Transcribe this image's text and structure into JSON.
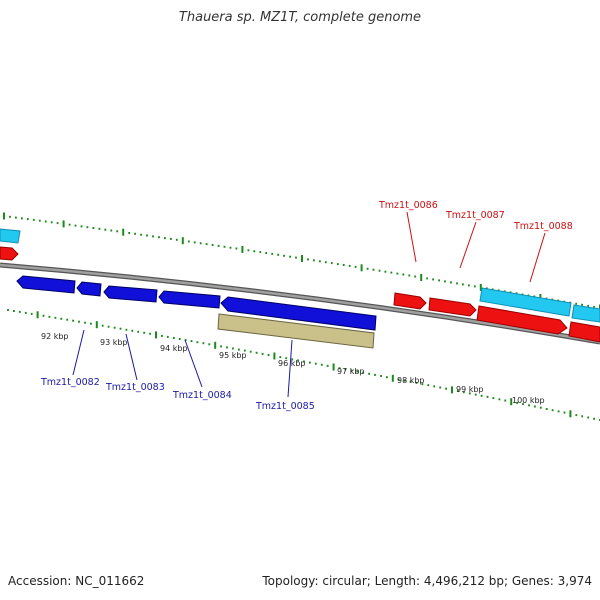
{
  "title": "Thauera sp. MZ1T, complete genome",
  "footer": {
    "accession": "Accession: NC_011662",
    "summary": "Topology: circular; Length: 4,496,212 bp; Genes: 3,974"
  },
  "colors": {
    "backbone": "#8c8c8c",
    "ruler": "#1a8a1a",
    "forward_gene_label": "#cc1111",
    "reverse_gene_label": "#1a1aa8",
    "gene_blue": "#1010d8",
    "gene_red": "#ee1111",
    "gene_cyan": "#22c8f0",
    "gene_khaki": "#c9c08a"
  },
  "scale_labels": [
    "92 kbp",
    "93 kbp",
    "94 kbp",
    "95 kbp",
    "96 kbp",
    "97 kbp",
    "98 kbp",
    "99 kbp",
    "100 kbp"
  ],
  "gene_labels": {
    "forward": [
      "Tmz1t_0086",
      "Tmz1t_0087",
      "Tmz1t_0088"
    ],
    "reverse": [
      "Tmz1t_0082",
      "Tmz1t_0083",
      "Tmz1t_0084",
      "Tmz1t_0085"
    ]
  }
}
